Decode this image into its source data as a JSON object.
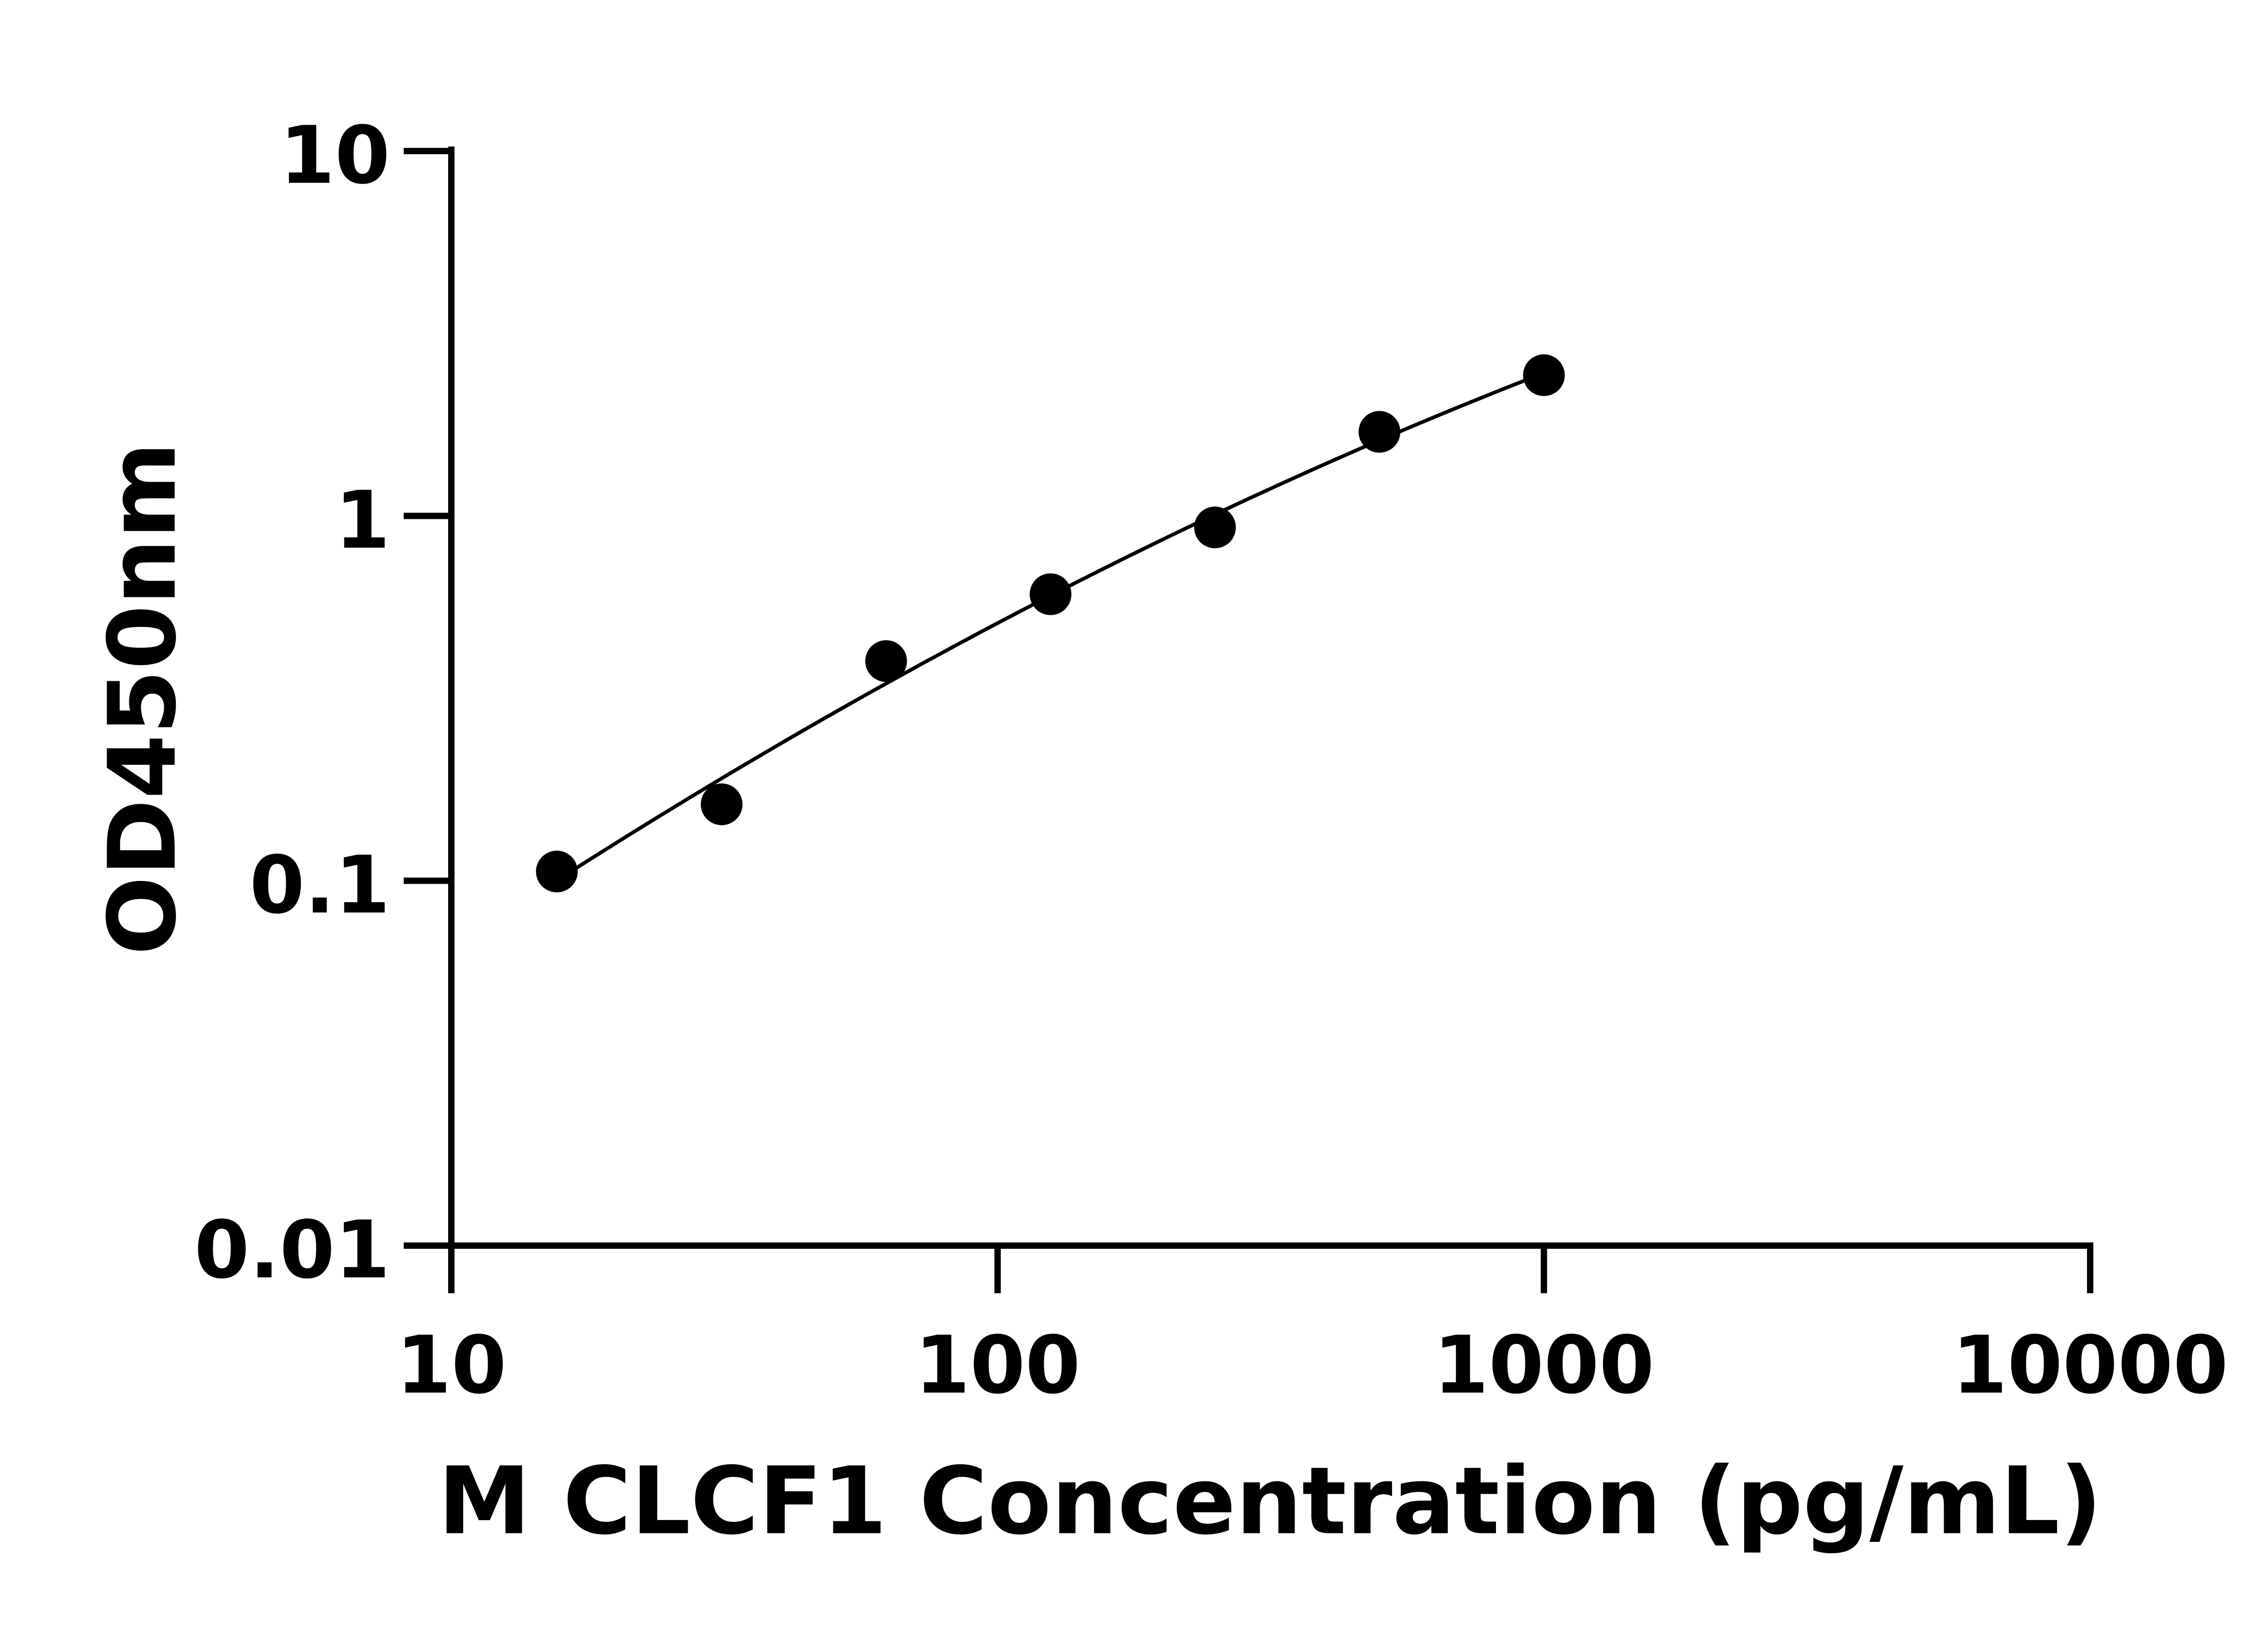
{
  "chart_data": {
    "type": "scatter",
    "title": "",
    "xlabel": "M CLCF1 Concentration (pg/mL)",
    "ylabel": "OD450nm",
    "x_scale": "log",
    "y_scale": "log",
    "xlim": [
      10,
      10000
    ],
    "ylim": [
      0.01,
      10
    ],
    "x_ticks": [
      "10",
      "100",
      "1000",
      "10000"
    ],
    "y_ticks": [
      "0.01",
      "0.1",
      "1",
      "10"
    ],
    "grid": false,
    "fit_line": true,
    "colors": {
      "points": "#000000",
      "line": "#000000"
    },
    "x": [
      15.6,
      31.25,
      62.5,
      125,
      250,
      500,
      1000
    ],
    "y": [
      0.106,
      0.162,
      0.4,
      0.61,
      0.93,
      1.7,
      2.43
    ]
  }
}
